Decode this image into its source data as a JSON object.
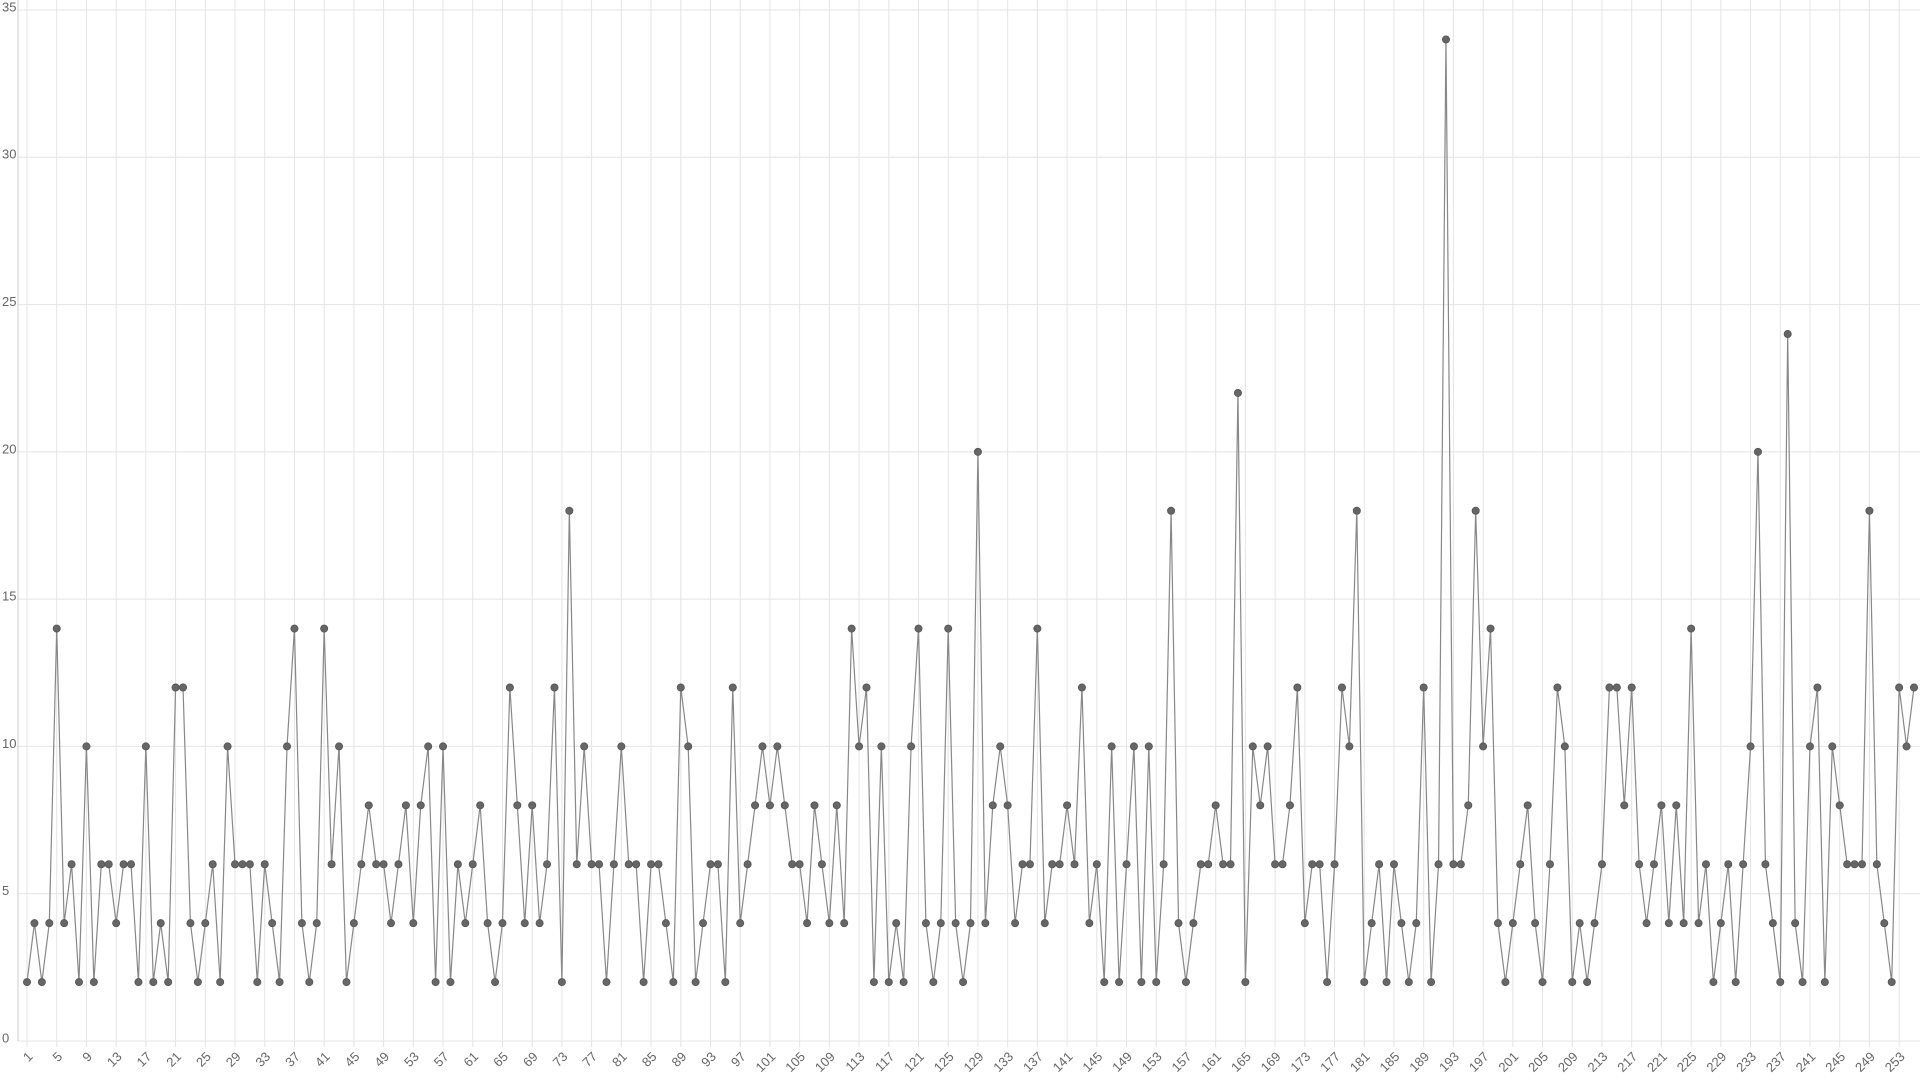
{
  "chart_data": {
    "type": "line",
    "categories": [
      "1",
      null,
      null,
      null,
      "5",
      null,
      null,
      null,
      "9",
      null,
      null,
      null,
      "13",
      null,
      null,
      null,
      "17",
      null,
      null,
      null,
      "21",
      null,
      null,
      null,
      "25",
      null,
      null,
      null,
      "29",
      null,
      null,
      null,
      "33",
      null,
      null,
      null,
      "37",
      null,
      null,
      null,
      "41",
      null,
      null,
      null,
      "45",
      null,
      null,
      null,
      "49",
      null,
      null,
      null,
      "53",
      null,
      null,
      null,
      "57",
      null,
      null,
      null,
      "61",
      null,
      null,
      null,
      "65",
      null,
      null,
      null,
      "69",
      null,
      null,
      null,
      "73",
      null,
      null,
      null,
      "77",
      null,
      null,
      null,
      "81",
      null,
      null,
      null,
      "85",
      null,
      null,
      null,
      "89",
      null,
      null,
      null,
      "93",
      null,
      null,
      null,
      "97",
      null,
      null,
      null,
      "101",
      null,
      null,
      null,
      "105",
      null,
      null,
      null,
      "109",
      null,
      null,
      null,
      "113",
      null,
      null,
      null,
      "117",
      null,
      null,
      null,
      "121",
      null,
      null,
      null,
      "125",
      null,
      null,
      null,
      "129",
      null,
      null,
      null,
      "133",
      null,
      null,
      null,
      "137",
      null,
      null,
      null,
      "141",
      null,
      null,
      null,
      "145",
      null,
      null,
      null,
      "149",
      null,
      null,
      null,
      "153",
      null,
      null,
      null,
      "157",
      null,
      null,
      null,
      "161",
      null,
      null,
      null,
      "165",
      null,
      null,
      null,
      "169",
      null,
      null,
      null,
      "173",
      null,
      null,
      null,
      "177",
      null,
      null,
      null,
      "181",
      null,
      null,
      null,
      "185",
      null,
      null,
      null,
      "189",
      null,
      null,
      null,
      "193",
      null,
      null,
      null,
      "197",
      null,
      null,
      null,
      "201",
      null,
      null,
      null,
      "205",
      null,
      null,
      null,
      "209",
      null,
      null,
      null,
      "213",
      null,
      null,
      null,
      "217",
      null,
      null,
      null,
      "221",
      null,
      null,
      null,
      "225",
      null,
      null,
      null,
      "229",
      null,
      null,
      null,
      "233",
      null,
      null,
      null,
      "237",
      null,
      null,
      null,
      "241",
      null,
      null,
      null,
      "245",
      null,
      null,
      null,
      "249",
      null,
      null,
      null,
      "253",
      null,
      null
    ],
    "values": [
      2,
      4,
      2,
      4,
      14,
      4,
      6,
      2,
      10,
      2,
      6,
      6,
      4,
      6,
      6,
      2,
      10,
      2,
      4,
      2,
      12,
      12,
      4,
      2,
      4,
      6,
      2,
      10,
      6,
      6,
      6,
      2,
      6,
      4,
      2,
      10,
      14,
      4,
      2,
      4,
      14,
      6,
      10,
      2,
      4,
      6,
      8,
      6,
      6,
      4,
      6,
      8,
      4,
      8,
      10,
      2,
      10,
      2,
      6,
      4,
      6,
      8,
      4,
      2,
      4,
      12,
      8,
      4,
      8,
      4,
      6,
      12,
      2,
      18,
      6,
      10,
      6,
      6,
      2,
      6,
      10,
      6,
      6,
      2,
      6,
      6,
      4,
      2,
      12,
      10,
      2,
      4,
      6,
      6,
      2,
      12,
      4,
      6,
      8,
      10,
      8,
      10,
      8,
      6,
      6,
      4,
      8,
      6,
      4,
      8,
      4,
      14,
      10,
      12,
      2,
      10,
      2,
      4,
      2,
      10,
      14,
      4,
      2,
      4,
      14,
      4,
      2,
      4,
      20,
      4,
      8,
      10,
      8,
      4,
      6,
      6,
      14,
      4,
      6,
      6,
      8,
      6,
      12,
      4,
      6,
      2,
      10,
      2,
      6,
      10,
      2,
      10,
      2,
      6,
      18,
      4,
      2,
      4,
      6,
      6,
      8,
      6,
      6,
      22,
      2,
      10,
      8,
      10,
      6,
      6,
      8,
      12,
      4,
      6,
      6,
      2,
      6,
      12,
      10,
      18,
      2,
      4,
      6,
      2,
      6,
      4,
      2,
      4,
      12,
      2,
      6,
      34,
      6,
      6,
      8,
      18,
      10,
      14,
      4,
      2,
      4,
      6,
      8,
      4,
      2,
      6,
      12,
      10,
      2,
      4,
      2,
      4,
      6,
      12,
      12,
      8,
      12,
      6,
      4,
      6,
      8,
      4,
      8,
      4,
      14,
      4,
      6,
      2,
      4,
      6,
      2,
      6,
      10,
      20,
      6,
      4,
      2,
      24,
      4,
      2,
      10,
      12,
      2,
      10,
      8,
      6,
      6,
      6,
      18,
      6,
      4,
      2,
      12,
      10,
      12
    ],
    "color": "#666666",
    "ylim": [
      0,
      35
    ],
    "yticks": [
      0,
      5,
      10,
      15,
      20,
      25,
      30,
      35
    ],
    "grid": true
  }
}
